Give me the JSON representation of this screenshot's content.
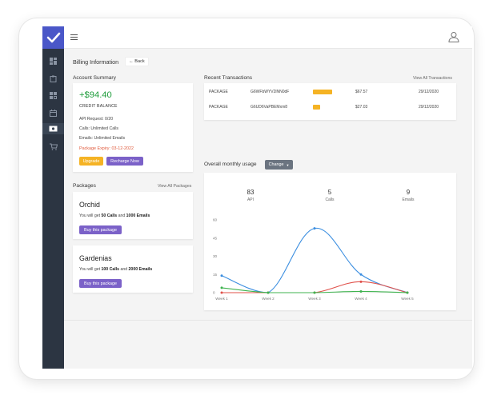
{
  "header": {
    "page_title": "Billing Information",
    "back_label": "Back"
  },
  "account": {
    "section_title": "Account Summary",
    "amount": "+$94.40",
    "credit_label": "CREDIT BALANCE",
    "api_requests": "API Request: 0/20",
    "calls": "Calls: Unlimited Calls",
    "emails": "Emails: Unlimited Emails",
    "expiry": "Package Expiry: 03-12-2022",
    "upgrade_label": "Upgrade",
    "recharge_label": "Recharge Now"
  },
  "packages": {
    "section_title": "Packages",
    "view_all": "View All Packages",
    "items": [
      {
        "name": "Orchid",
        "desc_prefix": "You will get ",
        "calls": "50 Calls",
        "mid": " and ",
        "emails": "1000 Emails",
        "button": "Buy this package"
      },
      {
        "name": "Gardenias",
        "desc_prefix": "You will get ",
        "calls": "100 Calls",
        "mid": " and ",
        "emails": "2000 Emails",
        "button": "Buy this package"
      }
    ]
  },
  "transactions": {
    "section_title": "Recent Transactions",
    "view_all": "View All Transactions",
    "rows": [
      {
        "type": "PACKAGE",
        "id": "G6WFbWYV2lNN0dF",
        "status": "",
        "amount": "$67.57",
        "date": "29/12/2020"
      },
      {
        "type": "PACKAGE",
        "id": "G6UD6VaPBEMxm8",
        "status": "",
        "amount": "$27.03",
        "date": "29/12/2020"
      }
    ]
  },
  "usage": {
    "section_title": "Overall monthly usage",
    "change_label": "Change",
    "kpis": [
      {
        "value": "83",
        "label": "API"
      },
      {
        "value": "5",
        "label": "Calls"
      },
      {
        "value": "9",
        "label": "Emails"
      }
    ]
  },
  "chart_data": {
    "type": "line",
    "categories": [
      "Week 1",
      "Week 2",
      "Week 3",
      "Week 4",
      "Week 5"
    ],
    "ylim": [
      0,
      60
    ],
    "yticks": [
      0,
      15,
      30,
      45,
      60
    ],
    "series": [
      {
        "values": [
          14,
          0,
          53,
          15,
          0
        ],
        "color": "#3b8ee0"
      },
      {
        "values": [
          0,
          0,
          0,
          9,
          0
        ],
        "color": "#e0504a"
      },
      {
        "values": [
          4,
          0,
          0,
          1,
          0
        ],
        "color": "#3fb34f"
      }
    ]
  },
  "colors": {
    "sidebar": "#2c3542",
    "logo": "#4a57c8",
    "accent_purple": "#7b61c8",
    "warning": "#f5b324",
    "success": "#1f9d3c"
  }
}
